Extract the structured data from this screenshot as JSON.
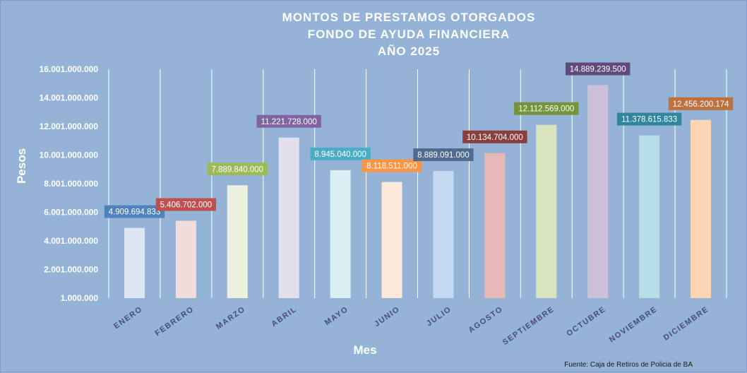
{
  "chart_data": {
    "type": "bar",
    "title": [
      "MONTOS  DE  PRESTAMOS  OTORGADOS",
      "FONDO  DE  AYUDA  FINANCIERA",
      "AÑO   2025"
    ],
    "xlabel": "Mes",
    "ylabel": "Pesos",
    "ylim": [
      1000000,
      16001000000
    ],
    "ytick_values": [
      1000000,
      2001000000,
      4001000000,
      6001000000,
      8001000000,
      10001000000,
      12001000000,
      14001000000,
      16001000000
    ],
    "ytick_labels": [
      "1.000.000",
      "2.001.000.000",
      "4.001.000.000",
      "6.001.000.000",
      "8.001.000.000",
      "10.001.000.000",
      "12.001.000.000",
      "14.001.000.000",
      "16.001.000.000"
    ],
    "grid": "vertical",
    "categories": [
      "ENERO",
      "FEBRERO",
      "MARZO",
      "ABRIL",
      "MAYO",
      "JUNIO",
      "JULIO",
      "AGOSTO",
      "SEPTIEMBRE",
      "OCTUBRE",
      "NOVIEMBRE",
      "DICIEMBRE"
    ],
    "values": [
      4909694833,
      5406702000,
      7889840000,
      11221728000,
      8945040000,
      8118511000,
      8889091000,
      10134704000,
      12112569000,
      14889239500,
      11378615833,
      12456200174
    ],
    "value_labels": [
      "4.909.694.833",
      "5.406.702.000",
      "7.889.840.000",
      "11.221.728.000",
      "8.945.040.000",
      "8.118.511.000",
      "8.889.091.000",
      "10.134.704.000",
      "12.112.569.000",
      "14.889.239.500",
      "11.378.615.833",
      "12.456.200.174"
    ],
    "bar_colors": [
      "#dce6f2",
      "#f2dcdb",
      "#ebf1de",
      "#e4dfec",
      "#dbeef4",
      "#fde9d9",
      "#c5d9f1",
      "#e6b8b7",
      "#d8e4bc",
      "#ccc0da",
      "#b7dee8",
      "#fcd5b4"
    ],
    "label_colors": [
      "#4f81bd",
      "#c0504d",
      "#9bbb59",
      "#8064a2",
      "#4bacc6",
      "#f79646",
      "#4f6b8f",
      "#8b3f3d",
      "#76923c",
      "#5f4a7b",
      "#31859c",
      "#c0703a"
    ],
    "source": "Fuente: Caja de Retiros de Policia de BA"
  }
}
